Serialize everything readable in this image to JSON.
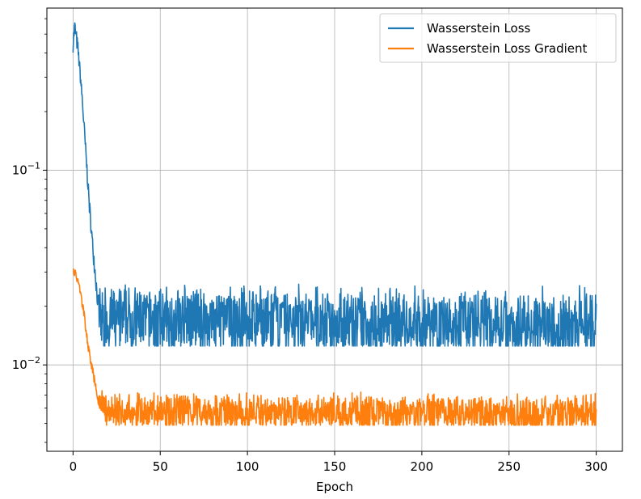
{
  "chart_data": {
    "type": "line",
    "title": "",
    "xlabel": "Epoch",
    "ylabel": "",
    "xlim": [
      -15,
      315
    ],
    "ylim": [
      0.0036,
      0.68
    ],
    "yscale": "log",
    "grid": true,
    "legend_position": "top-right",
    "x_ticks": [
      {
        "value": 0,
        "label": "0"
      },
      {
        "value": 50,
        "label": "50"
      },
      {
        "value": 100,
        "label": "100"
      },
      {
        "value": 150,
        "label": "150"
      },
      {
        "value": 200,
        "label": "200"
      },
      {
        "value": 250,
        "label": "250"
      },
      {
        "value": 300,
        "label": "300"
      }
    ],
    "y_ticks": [
      {
        "value": 0.1,
        "base": "10",
        "exp": "−1"
      },
      {
        "value": 0.01,
        "base": "10",
        "exp": "−2"
      }
    ],
    "series": [
      {
        "name": "Wasserstein Loss",
        "color": "#1f77b4",
        "anchors": [
          [
            0,
            0.45
          ],
          [
            1,
            0.55
          ],
          [
            3,
            0.4
          ],
          [
            5,
            0.25
          ],
          [
            8,
            0.1
          ],
          [
            10,
            0.055
          ],
          [
            12,
            0.035
          ],
          [
            14,
            0.022
          ],
          [
            16,
            0.017
          ],
          [
            300,
            0.016
          ]
        ],
        "noise_upper": 0.026,
        "noise_lower": 0.0125
      },
      {
        "name": "Wasserstein Loss Gradient",
        "color": "#ff7f0e",
        "anchors": [
          [
            0,
            0.031
          ],
          [
            3,
            0.027
          ],
          [
            6,
            0.019
          ],
          [
            9,
            0.012
          ],
          [
            12,
            0.0085
          ],
          [
            15,
            0.0062
          ],
          [
            18,
            0.0058
          ],
          [
            300,
            0.0056
          ]
        ],
        "noise_upper": 0.0072,
        "noise_lower": 0.0049
      }
    ]
  }
}
